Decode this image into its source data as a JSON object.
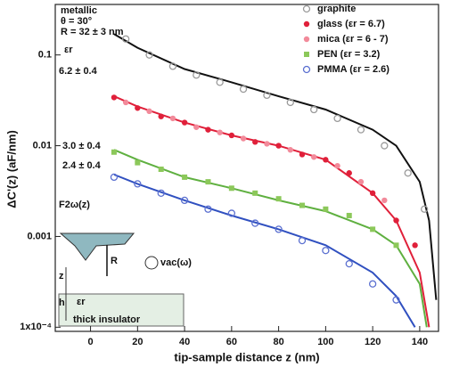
{
  "chart_data": {
    "type": "scatter",
    "xlabel": "tip-sample distance z  (nm)",
    "ylabel": "ΔC'(z)  (aF/nm)",
    "log_y": true,
    "xlim": [
      -15,
      148
    ],
    "ylim": [
      9e-05,
      0.36
    ],
    "xticks": [
      0,
      20,
      40,
      60,
      80,
      100,
      120,
      140
    ],
    "yticks": [
      {
        "value": 0.0001,
        "label": "1x10⁻⁴"
      },
      0.001,
      0.01,
      0.1
    ],
    "legend": "upper right",
    "series": [
      {
        "name": "graphite",
        "color": "#9a9a9a",
        "marker": "open-circle",
        "x": [
          15,
          25,
          35,
          45,
          55,
          65,
          75,
          85,
          95,
          105,
          115,
          125,
          135,
          142
        ],
        "values": [
          0.15,
          0.1,
          0.075,
          0.06,
          0.05,
          0.042,
          0.036,
          0.03,
          0.025,
          0.02,
          0.015,
          0.01,
          0.005,
          0.002
        ]
      },
      {
        "name": "glass (εr = 6.7)",
        "color": "#e0203a",
        "marker": "filled-circle",
        "x": [
          10,
          20,
          30,
          40,
          50,
          60,
          70,
          80,
          90,
          100,
          110,
          120,
          130,
          138
        ],
        "values": [
          0.034,
          0.026,
          0.021,
          0.018,
          0.015,
          0.013,
          0.011,
          0.01,
          0.008,
          0.007,
          0.005,
          0.003,
          0.0015,
          0.0008
        ]
      },
      {
        "name": "mica (εr = 6 - 7)",
        "color": "#f28a9a",
        "marker": "filled-circle",
        "x": [
          15,
          25,
          35,
          45,
          55,
          65,
          75,
          85,
          95,
          105,
          115,
          125
        ],
        "values": [
          0.03,
          0.024,
          0.02,
          0.016,
          0.014,
          0.012,
          0.0105,
          0.009,
          0.0075,
          0.006,
          0.004,
          0.0025
        ]
      },
      {
        "name": "PEN (εr = 3.2)",
        "color": "#8cc85a",
        "marker": "filled-square",
        "x": [
          10,
          20,
          30,
          40,
          50,
          60,
          70,
          80,
          90,
          100,
          110,
          120,
          130
        ],
        "values": [
          0.0085,
          0.0065,
          0.0055,
          0.0045,
          0.004,
          0.0034,
          0.003,
          0.0026,
          0.0022,
          0.002,
          0.0017,
          0.0012,
          0.0008
        ]
      },
      {
        "name": "PMMA (εr = 2.6)",
        "color": "#5a6fd0",
        "marker": "open-circle",
        "x": [
          10,
          20,
          30,
          40,
          50,
          60,
          70,
          80,
          90,
          100,
          110,
          120,
          130
        ],
        "values": [
          0.0045,
          0.0038,
          0.003,
          0.0025,
          0.002,
          0.0018,
          0.0014,
          0.0012,
          0.0009,
          0.0007,
          0.0005,
          0.0003,
          0.0002
        ]
      }
    ],
    "fits": [
      {
        "color": "#111111",
        "x": [
          10,
          20,
          40,
          60,
          80,
          100,
          120,
          130,
          140,
          144,
          147
        ],
        "values": [
          0.17,
          0.12,
          0.07,
          0.05,
          0.035,
          0.025,
          0.015,
          0.01,
          0.004,
          0.0015,
          0.0002
        ]
      },
      {
        "color": "#e0203a",
        "x": [
          10,
          20,
          40,
          60,
          80,
          100,
          120,
          130,
          140,
          144
        ],
        "values": [
          0.035,
          0.027,
          0.018,
          0.013,
          0.01,
          0.007,
          0.003,
          0.0015,
          0.0004,
          0.0001
        ]
      },
      {
        "color": "#5fb040",
        "x": [
          10,
          20,
          40,
          60,
          80,
          100,
          120,
          130,
          140,
          143
        ],
        "values": [
          0.009,
          0.007,
          0.0045,
          0.0034,
          0.0025,
          0.0019,
          0.0012,
          0.0008,
          0.0003,
          0.0001
        ]
      },
      {
        "color": "#3050c0",
        "x": [
          10,
          20,
          40,
          60,
          80,
          100,
          120,
          130,
          138
        ],
        "values": [
          0.0048,
          0.0038,
          0.0025,
          0.0017,
          0.0012,
          0.0008,
          0.0004,
          0.00022,
          0.0001
        ]
      }
    ],
    "annotations": [
      "metallic",
      "θ = 30°",
      "R = 32 ± 3 nm",
      "εr",
      "6.2 ± 0.4",
      "3.0 ± 0.4",
      "2.4 ± 0.4",
      "F2ω(z)"
    ],
    "inset": {
      "substrate": "thick insulator",
      "z": "z",
      "h": "h",
      "eps": "εr",
      "R": "R",
      "source": "vac(ω)"
    }
  }
}
